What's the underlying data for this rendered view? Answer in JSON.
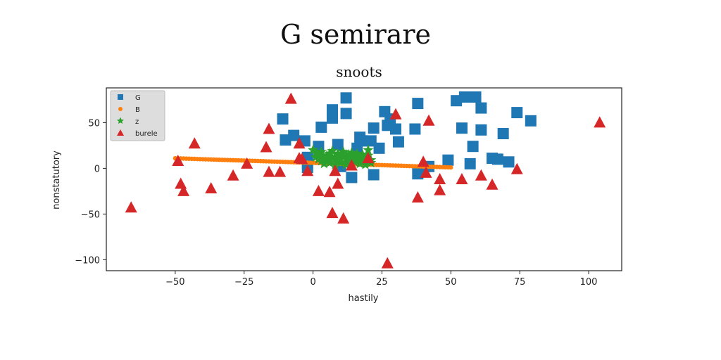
{
  "figure": {
    "suptitle": "G semirare",
    "title": "snoots"
  },
  "chart_data": {
    "type": "scatter",
    "title": "snoots",
    "xlabel": "hastily",
    "ylabel": "nonstatutory",
    "xlim": [
      -75,
      112
    ],
    "ylim": [
      -112,
      88
    ],
    "xticks": [
      -50,
      -25,
      0,
      25,
      50,
      75,
      100
    ],
    "xtick_labels": [
      "−50",
      "−25",
      "0",
      "25",
      "50",
      "75",
      "100"
    ],
    "yticks": [
      50,
      0,
      -50,
      -100
    ],
    "ytick_labels": [
      "50",
      "0",
      "−50",
      "−100"
    ],
    "grid": false,
    "legend_position": "top-left",
    "colors": {
      "G": "#1f77b4",
      "B": "#ff7f0e",
      "z": "#2ca02c",
      "burele": "#d62728"
    },
    "series": [
      {
        "name": "G",
        "marker": "square",
        "points": [
          [
            -11,
            54
          ],
          [
            -10,
            31
          ],
          [
            -7,
            36
          ],
          [
            -3,
            30
          ],
          [
            -2,
            12
          ],
          [
            -2,
            5
          ],
          [
            -2,
            1
          ],
          [
            2,
            24
          ],
          [
            3,
            45
          ],
          [
            7,
            55
          ],
          [
            7,
            64
          ],
          [
            9,
            26
          ],
          [
            10,
            2
          ],
          [
            12,
            60
          ],
          [
            12,
            77
          ],
          [
            14,
            -10
          ],
          [
            16,
            22
          ],
          [
            17,
            34
          ],
          [
            18,
            30
          ],
          [
            21,
            30
          ],
          [
            22,
            44
          ],
          [
            22,
            -7
          ],
          [
            24,
            22
          ],
          [
            26,
            62
          ],
          [
            27,
            47
          ],
          [
            28,
            54
          ],
          [
            30,
            43
          ],
          [
            31,
            29
          ],
          [
            37,
            43
          ],
          [
            38,
            71
          ],
          [
            38,
            -6
          ],
          [
            42,
            2
          ],
          [
            49,
            9
          ],
          [
            52,
            74
          ],
          [
            54,
            44
          ],
          [
            55,
            78
          ],
          [
            57,
            5
          ],
          [
            58,
            24
          ],
          [
            59,
            78
          ],
          [
            61,
            42
          ],
          [
            61,
            66
          ],
          [
            65,
            11
          ],
          [
            67,
            10
          ],
          [
            69,
            38
          ],
          [
            71,
            7
          ],
          [
            74,
            61
          ],
          [
            79,
            52
          ]
        ]
      },
      {
        "name": "B",
        "marker": "circle",
        "points": [
          [
            -50,
            11
          ],
          [
            -49,
            10.9
          ],
          [
            -48,
            10.8
          ],
          [
            -47,
            10.7
          ],
          [
            -46,
            10.6
          ],
          [
            -45,
            10.5
          ],
          [
            -44,
            10.4
          ],
          [
            -43,
            10.3
          ],
          [
            -42,
            10.2
          ],
          [
            -41,
            10.1
          ],
          [
            -40,
            10
          ],
          [
            -39,
            9.9
          ],
          [
            -38,
            9.8
          ],
          [
            -37,
            9.7
          ],
          [
            -36,
            9.6
          ],
          [
            -35,
            9.5
          ],
          [
            -34,
            9.4
          ],
          [
            -33,
            9.3
          ],
          [
            -32,
            9.2
          ],
          [
            -31,
            9.1
          ],
          [
            -30,
            9
          ],
          [
            -29,
            8.9
          ],
          [
            -28,
            8.8
          ],
          [
            -27,
            8.7
          ],
          [
            -26,
            8.6
          ],
          [
            -25,
            8.5
          ],
          [
            -24,
            8.4
          ],
          [
            -23,
            8.3
          ],
          [
            -22,
            8.2
          ],
          [
            -21,
            8.1
          ],
          [
            -20,
            8
          ],
          [
            -19,
            7.9
          ],
          [
            -18,
            7.8
          ],
          [
            -17,
            7.7
          ],
          [
            -16,
            7.6
          ],
          [
            -15,
            7.5
          ],
          [
            -14,
            7.4
          ],
          [
            -13,
            7.3
          ],
          [
            -12,
            7.2
          ],
          [
            -11,
            7.1
          ],
          [
            -10,
            7
          ],
          [
            -9,
            6.9
          ],
          [
            -8,
            6.8
          ],
          [
            -7,
            6.7
          ],
          [
            -6,
            6.6
          ],
          [
            -5,
            6.5
          ],
          [
            -4,
            6.4
          ],
          [
            -3,
            6.3
          ],
          [
            -2,
            6.2
          ],
          [
            -1,
            6.1
          ],
          [
            0,
            6
          ],
          [
            1,
            5.9
          ],
          [
            2,
            5.8
          ],
          [
            3,
            5.7
          ],
          [
            4,
            5.6
          ],
          [
            5,
            5.5
          ],
          [
            6,
            5.4
          ],
          [
            7,
            5.3
          ],
          [
            8,
            5.2
          ],
          [
            9,
            5.1
          ],
          [
            10,
            5
          ],
          [
            11,
            4.9
          ],
          [
            12,
            4.8
          ],
          [
            13,
            4.7
          ],
          [
            14,
            4.6
          ],
          [
            15,
            4.5
          ],
          [
            16,
            4.4
          ],
          [
            17,
            4.3
          ],
          [
            18,
            4.2
          ],
          [
            19,
            4.1
          ],
          [
            20,
            4
          ],
          [
            21,
            3.9
          ],
          [
            22,
            3.8
          ],
          [
            23,
            3.7
          ],
          [
            24,
            3.6
          ],
          [
            25,
            3.5
          ],
          [
            26,
            3.4
          ],
          [
            27,
            3.3
          ],
          [
            28,
            3.2
          ],
          [
            29,
            3.1
          ],
          [
            30,
            3
          ],
          [
            31,
            2.9
          ],
          [
            32,
            2.8
          ],
          [
            33,
            2.7
          ],
          [
            34,
            2.6
          ],
          [
            35,
            2.5
          ],
          [
            36,
            2.4
          ],
          [
            37,
            2.3
          ],
          [
            38,
            2.2
          ],
          [
            39,
            2.1
          ],
          [
            40,
            2
          ],
          [
            41,
            1.9
          ],
          [
            42,
            1.8
          ],
          [
            43,
            1.7
          ],
          [
            44,
            1.6
          ],
          [
            45,
            1.5
          ],
          [
            46,
            1.4
          ],
          [
            47,
            1.3
          ],
          [
            48,
            1.2
          ],
          [
            49,
            1.1
          ],
          [
            50,
            1
          ]
        ]
      },
      {
        "name": "z",
        "marker": "star",
        "points": [
          [
            0,
            20
          ],
          [
            1,
            12
          ],
          [
            1,
            17
          ],
          [
            2,
            10
          ],
          [
            2,
            15
          ],
          [
            3,
            8
          ],
          [
            3,
            18
          ],
          [
            4,
            12
          ],
          [
            4,
            5
          ],
          [
            5,
            14
          ],
          [
            5,
            9
          ],
          [
            6,
            16
          ],
          [
            6,
            6
          ],
          [
            7,
            11
          ],
          [
            7,
            19
          ],
          [
            8,
            13
          ],
          [
            8,
            4
          ],
          [
            9,
            16
          ],
          [
            9,
            9
          ],
          [
            10,
            12
          ],
          [
            10,
            6
          ],
          [
            11,
            14
          ],
          [
            11,
            18
          ],
          [
            12,
            10
          ],
          [
            12,
            4
          ],
          [
            13,
            15
          ],
          [
            13,
            8
          ],
          [
            14,
            11
          ],
          [
            14,
            17
          ],
          [
            15,
            7
          ],
          [
            15,
            13
          ],
          [
            16,
            10
          ],
          [
            16,
            16
          ],
          [
            17,
            5
          ],
          [
            17,
            12
          ],
          [
            18,
            15
          ],
          [
            18,
            8
          ],
          [
            19,
            11
          ],
          [
            19,
            4
          ],
          [
            20,
            14
          ],
          [
            20,
            20
          ],
          [
            21,
            9
          ],
          [
            21,
            6
          ],
          [
            3,
            13
          ],
          [
            6,
            11
          ],
          [
            9,
            13
          ],
          [
            12,
            15
          ],
          [
            15,
            10
          ]
        ]
      },
      {
        "name": "burele",
        "marker": "triangle",
        "points": [
          [
            -66,
            -43
          ],
          [
            -49,
            8
          ],
          [
            -48,
            -17
          ],
          [
            -47,
            -25
          ],
          [
            -43,
            27
          ],
          [
            -37,
            -22
          ],
          [
            -29,
            -8
          ],
          [
            -24,
            5
          ],
          [
            -17,
            23
          ],
          [
            -16,
            43
          ],
          [
            -16,
            -4
          ],
          [
            -12,
            -4
          ],
          [
            -8,
            76
          ],
          [
            -5,
            27
          ],
          [
            -5,
            11
          ],
          [
            -4,
            10
          ],
          [
            -2,
            -3
          ],
          [
            2,
            -25
          ],
          [
            6,
            -26
          ],
          [
            7,
            -49
          ],
          [
            8,
            -3
          ],
          [
            9,
            -17
          ],
          [
            11,
            -55
          ],
          [
            14,
            3
          ],
          [
            20,
            11
          ],
          [
            27,
            -104
          ],
          [
            30,
            59
          ],
          [
            38,
            -32
          ],
          [
            40,
            7
          ],
          [
            41,
            -5
          ],
          [
            42,
            52
          ],
          [
            46,
            -12
          ],
          [
            46,
            -24
          ],
          [
            54,
            -12
          ],
          [
            61,
            -8
          ],
          [
            65,
            -18
          ],
          [
            74,
            -1
          ],
          [
            104,
            50
          ]
        ]
      }
    ]
  }
}
